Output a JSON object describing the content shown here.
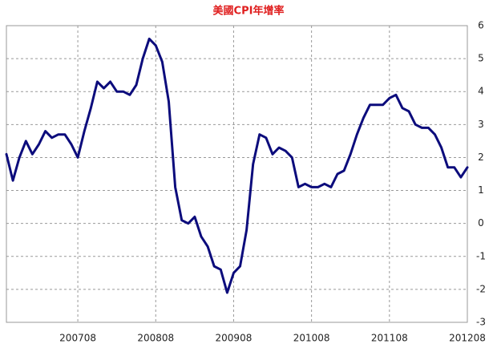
{
  "chart_data": {
    "type": "line",
    "title": "美國CPI年增率",
    "categories": [
      null,
      null,
      null,
      null,
      null,
      null,
      null,
      null,
      null,
      null,
      null,
      "200708",
      null,
      null,
      null,
      null,
      null,
      null,
      null,
      null,
      null,
      null,
      null,
      "200808",
      null,
      null,
      null,
      null,
      null,
      null,
      null,
      null,
      null,
      null,
      null,
      "200908",
      null,
      null,
      null,
      null,
      null,
      null,
      null,
      null,
      null,
      null,
      null,
      "201008",
      null,
      null,
      null,
      null,
      null,
      null,
      null,
      null,
      null,
      null,
      null,
      "201108",
      null,
      null,
      null,
      null,
      null,
      null,
      null,
      null,
      null,
      null,
      null,
      "201208"
    ],
    "series": [
      {
        "name": "CPI",
        "color": "#0c0c7c",
        "values": [
          2.1,
          1.3,
          2.0,
          2.5,
          2.1,
          2.4,
          2.8,
          2.6,
          2.7,
          2.7,
          2.4,
          2.0,
          2.8,
          3.5,
          4.3,
          4.1,
          4.3,
          4.0,
          4.0,
          3.9,
          4.2,
          5.0,
          5.6,
          5.4,
          4.9,
          3.7,
          1.1,
          0.1,
          0.0,
          0.2,
          -0.4,
          -0.7,
          -1.3,
          -1.4,
          -2.1,
          -1.5,
          -1.3,
          -0.2,
          1.8,
          2.7,
          2.6,
          2.1,
          2.3,
          2.2,
          2.0,
          1.1,
          1.2,
          1.1,
          1.1,
          1.2,
          1.1,
          1.5,
          1.6,
          2.1,
          2.7,
          3.2,
          3.6,
          3.6,
          3.6,
          3.8,
          3.9,
          3.5,
          3.4,
          3.0,
          2.9,
          2.9,
          2.7,
          2.3,
          1.7,
          1.7,
          1.4,
          1.7
        ]
      }
    ],
    "ylim": [
      -3,
      6
    ],
    "yticks": [
      -3,
      -2,
      -1,
      0,
      1,
      2,
      3,
      4,
      5,
      6
    ],
    "grid": true
  }
}
